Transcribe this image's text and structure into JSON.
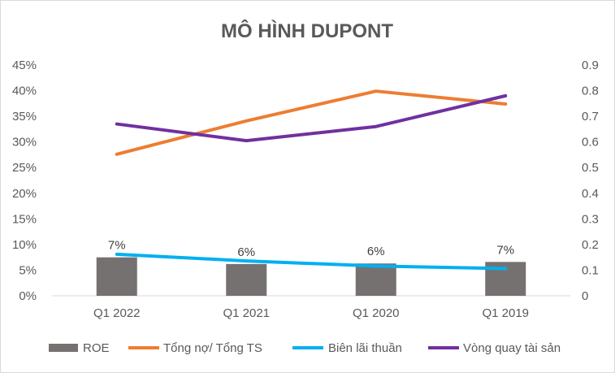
{
  "chart_data": {
    "type": "bar",
    "title": "MÔ HÌNH DUPONT",
    "categories": [
      "Q1 2022",
      "Q1 2021",
      "Q1 2020",
      "Q1 2019"
    ],
    "y_left": {
      "min": 0,
      "max": 0.45,
      "ticks": [
        "0%",
        "5%",
        "10%",
        "15%",
        "20%",
        "25%",
        "30%",
        "35%",
        "40%",
        "45%"
      ]
    },
    "y_right": {
      "min": 0,
      "max": 0.9,
      "ticks": [
        "0",
        "0.1",
        "0.2",
        "0.3",
        "0.4",
        "0.5",
        "0.6",
        "0.7",
        "0.8",
        "0.9"
      ]
    },
    "grid": false,
    "legend_position": "bottom",
    "series": [
      {
        "name": "ROE",
        "kind": "bar",
        "axis": "left",
        "color": "#767171",
        "values": [
          0.075,
          0.062,
          0.063,
          0.066
        ],
        "labels": [
          "7%",
          "6%",
          "6%",
          "7%"
        ]
      },
      {
        "name": "Tổng nợ/ Tổng TS",
        "kind": "line",
        "axis": "left",
        "color": "#ED7D31",
        "values": [
          0.276,
          0.341,
          0.399,
          0.374
        ]
      },
      {
        "name": "Biên lãi thuần",
        "kind": "line",
        "axis": "left",
        "color": "#00B0F0",
        "values": [
          0.081,
          0.068,
          0.058,
          0.053
        ]
      },
      {
        "name": "Vòng quay tài sản",
        "kind": "line",
        "axis": "right",
        "color": "#7030A0",
        "values": [
          0.67,
          0.605,
          0.66,
          0.78
        ]
      }
    ]
  }
}
